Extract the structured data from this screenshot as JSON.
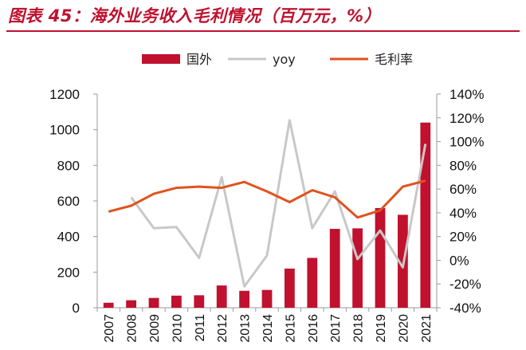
{
  "title": "图表 45：海外业务收入毛利情况（百万元，%）",
  "chart_data": {
    "type": "bar+line",
    "categories": [
      "2007",
      "2008",
      "2009",
      "2010",
      "2011",
      "2012",
      "2013",
      "2014",
      "2015",
      "2016",
      "2017",
      "2018",
      "2019",
      "2020",
      "2021"
    ],
    "series": [
      {
        "name": "国外",
        "type": "bar",
        "axis": "left",
        "color": "#c0112e",
        "values": [
          28,
          42,
          55,
          68,
          70,
          125,
          95,
          100,
          220,
          280,
          443,
          446,
          560,
          522,
          1040
        ]
      },
      {
        "name": "yoy",
        "type": "line",
        "axis": "right",
        "color": "#c8c8c8",
        "values": [
          null,
          53,
          27,
          28,
          2,
          70,
          -22,
          4,
          118,
          27,
          58,
          1,
          25,
          -6,
          98
        ]
      },
      {
        "name": "毛利率",
        "type": "line",
        "axis": "right",
        "color": "#e0531f",
        "values": [
          41,
          46,
          56,
          61,
          62,
          61,
          66,
          58,
          49,
          59,
          53,
          36,
          42,
          62,
          67
        ]
      }
    ],
    "y_left": {
      "min": 0,
      "max": 1200,
      "step": 200,
      "ticks": [
        "0",
        "200",
        "400",
        "600",
        "800",
        "1000",
        "1200"
      ]
    },
    "y_right": {
      "min": -40,
      "max": 140,
      "step": 20,
      "ticks": [
        "-40%",
        "-20%",
        "0%",
        "20%",
        "40%",
        "60%",
        "80%",
        "100%",
        "120%",
        "140%"
      ]
    },
    "legend_position": "top-center",
    "grid": false
  }
}
